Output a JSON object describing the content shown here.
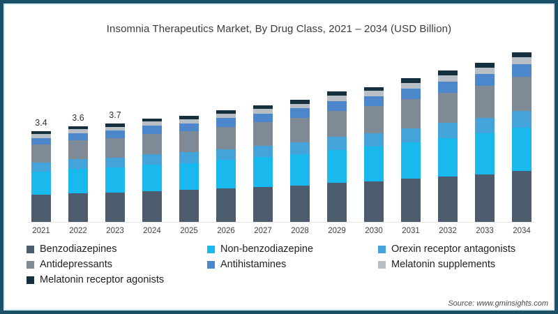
{
  "window": {
    "background": "#ffffff",
    "border_color": "#1b5066",
    "inner_border_color": "#d9edf5"
  },
  "header": {
    "title": "Insomnia Therapeutics Market, By Drug Class, 2021 – 2034 (USD Billion)"
  },
  "footer": {
    "source": "Source: www.gminsights.com"
  },
  "chart_data": {
    "type": "bar",
    "stacked": true,
    "title": "Insomnia Therapeutics Market, By Drug Class, 2021 – 2034 (USD Billion)",
    "xlabel": "",
    "ylabel": "",
    "unit": "USD Billion",
    "grid": false,
    "legend_position": "bottom",
    "ylim": [
      0,
      6.6
    ],
    "categories": [
      "2021",
      "2022",
      "2023",
      "2024",
      "2025",
      "2026",
      "2027",
      "2028",
      "2029",
      "2030",
      "2031",
      "2032",
      "2033",
      "2034"
    ],
    "totals": [
      3.4,
      3.6,
      3.7,
      3.9,
      4.0,
      4.2,
      4.4,
      4.6,
      4.9,
      5.1,
      5.4,
      5.7,
      6.0,
      6.4
    ],
    "total_labels": [
      "3.4",
      "3.6",
      "3.7",
      "",
      "",
      "",
      "",
      "",
      "",
      "",
      "",
      "",
      "",
      ""
    ],
    "series": [
      {
        "name": "Benzodiazepines",
        "color": "#4d5c6d",
        "values": [
          1.02,
          1.08,
          1.11,
          1.17,
          1.2,
          1.26,
          1.32,
          1.38,
          1.47,
          1.53,
          1.62,
          1.71,
          1.8,
          1.92
        ]
      },
      {
        "name": "Non-benzodiazepine",
        "color": "#1ab9ed",
        "values": [
          0.87,
          0.92,
          0.94,
          0.99,
          1.02,
          1.07,
          1.12,
          1.17,
          1.25,
          1.3,
          1.38,
          1.45,
          1.53,
          1.63
        ]
      },
      {
        "name": "Orexin receptor antagonists",
        "color": "#44a4d9",
        "values": [
          0.34,
          0.36,
          0.37,
          0.39,
          0.4,
          0.42,
          0.44,
          0.46,
          0.49,
          0.51,
          0.54,
          0.57,
          0.6,
          0.64
        ]
      },
      {
        "name": "Antidepressants",
        "color": "#7e8b97",
        "values": [
          0.68,
          0.72,
          0.74,
          0.78,
          0.8,
          0.84,
          0.88,
          0.92,
          0.98,
          1.02,
          1.08,
          1.14,
          1.2,
          1.28
        ]
      },
      {
        "name": "Antihistamines",
        "color": "#4d87cb",
        "values": [
          0.26,
          0.27,
          0.28,
          0.29,
          0.3,
          0.32,
          0.33,
          0.35,
          0.37,
          0.38,
          0.41,
          0.43,
          0.45,
          0.48
        ]
      },
      {
        "name": "Melatonin supplements",
        "color": "#b7bec4",
        "values": [
          0.14,
          0.14,
          0.15,
          0.16,
          0.16,
          0.17,
          0.18,
          0.18,
          0.2,
          0.2,
          0.22,
          0.23,
          0.24,
          0.26
        ]
      },
      {
        "name": "Melatonin receptor agonists",
        "color": "#14303f",
        "values": [
          0.1,
          0.11,
          0.11,
          0.12,
          0.12,
          0.13,
          0.13,
          0.14,
          0.15,
          0.15,
          0.16,
          0.17,
          0.18,
          0.19
        ]
      }
    ]
  }
}
